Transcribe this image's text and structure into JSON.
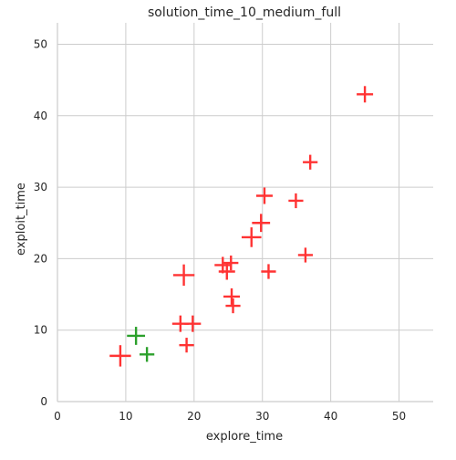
{
  "chart_data": {
    "type": "scatter",
    "title": "solution_time_10_medium_full",
    "xlabel": "explore_time",
    "ylabel": "exploit_time",
    "xlim": [
      0,
      55
    ],
    "ylim": [
      0,
      53
    ],
    "xticks": [
      0,
      10,
      20,
      30,
      40,
      50
    ],
    "yticks": [
      0,
      10,
      20,
      30,
      40,
      50
    ],
    "grid": true,
    "marker": "plus",
    "series": [
      {
        "color": "#ff3333",
        "points": [
          {
            "x": 9.2,
            "y": 6.4,
            "size": 1.3
          },
          {
            "x": 18.5,
            "y": 17.7,
            "size": 1.3
          },
          {
            "x": 18.0,
            "y": 10.9,
            "size": 1.0
          },
          {
            "x": 19.8,
            "y": 10.9,
            "size": 1.0
          },
          {
            "x": 18.9,
            "y": 7.9,
            "size": 0.9
          },
          {
            "x": 24.2,
            "y": 19.1,
            "size": 1.0
          },
          {
            "x": 24.8,
            "y": 18.2,
            "size": 1.0
          },
          {
            "x": 25.4,
            "y": 19.4,
            "size": 0.9
          },
          {
            "x": 25.5,
            "y": 14.7,
            "size": 1.0
          },
          {
            "x": 25.7,
            "y": 13.4,
            "size": 0.9
          },
          {
            "x": 28.4,
            "y": 23.0,
            "size": 1.2
          },
          {
            "x": 29.8,
            "y": 25.0,
            "size": 1.1
          },
          {
            "x": 30.3,
            "y": 28.8,
            "size": 1.0
          },
          {
            "x": 30.9,
            "y": 18.2,
            "size": 0.9
          },
          {
            "x": 34.9,
            "y": 28.1,
            "size": 0.9
          },
          {
            "x": 36.3,
            "y": 20.5,
            "size": 0.9
          },
          {
            "x": 37.0,
            "y": 33.5,
            "size": 0.9
          },
          {
            "x": 45.0,
            "y": 43.0,
            "size": 1.0
          }
        ]
      },
      {
        "color": "#2ca02c",
        "points": [
          {
            "x": 11.5,
            "y": 9.2,
            "size": 1.1
          },
          {
            "x": 13.1,
            "y": 6.6,
            "size": 0.9
          }
        ]
      }
    ]
  }
}
